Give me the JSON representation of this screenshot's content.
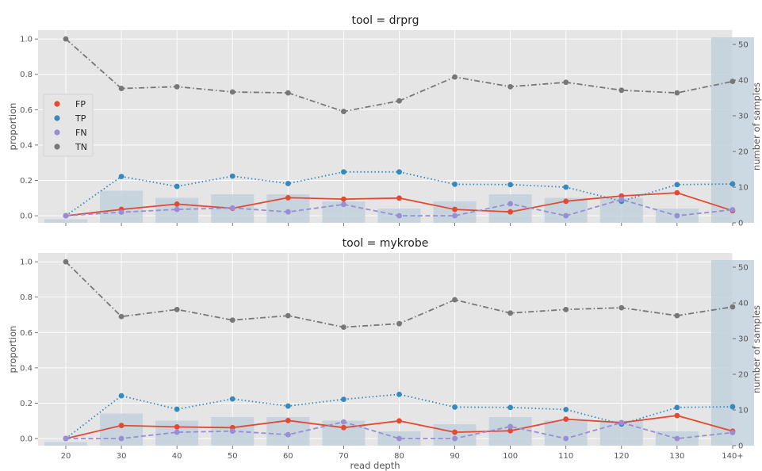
{
  "chart_data": {
    "type": "line",
    "x_label": "read depth",
    "categories": [
      "20",
      "30",
      "40",
      "50",
      "60",
      "70",
      "80",
      "90",
      "100",
      "110",
      "120",
      "130",
      "140+"
    ],
    "left_axis": {
      "label": "proportion",
      "ylim": [
        -0.04,
        1.05
      ],
      "ticks": [
        0.0,
        0.2,
        0.4,
        0.6,
        0.8,
        1.0
      ],
      "tick_labels": [
        "0.0",
        "0.2",
        "0.4",
        "0.6",
        "0.8",
        "1.0"
      ]
    },
    "right_axis": {
      "label": "number of samples",
      "ylim": [
        0,
        54
      ],
      "ticks": [
        0,
        10,
        20,
        30,
        40,
        50
      ],
      "tick_labels": [
        "0",
        "10",
        "20",
        "30",
        "40",
        "50"
      ]
    },
    "grid": true,
    "legend": {
      "placement": "center-left of top panel",
      "entries": [
        {
          "label": "FP",
          "color": "#e24a33"
        },
        {
          "label": "TP",
          "color": "#348abd"
        },
        {
          "label": "FN",
          "color": "#988ed5"
        },
        {
          "label": "TN",
          "color": "#777777"
        }
      ]
    },
    "series_styles": {
      "FP": {
        "color": "#e24a33",
        "dash": "solid"
      },
      "TP": {
        "color": "#348abd",
        "dash": "dotted"
      },
      "FN": {
        "color": "#988ed5",
        "dash": "dashed"
      },
      "TN": {
        "color": "#777777",
        "dash": "dashdot"
      }
    },
    "bar_color": "#bfd0dc",
    "panels": [
      {
        "title": "tool = drprg",
        "bars_samples": [
          1,
          9,
          7,
          8,
          8,
          6,
          4,
          6,
          8,
          7,
          7,
          4,
          52
        ],
        "series": [
          {
            "name": "FP",
            "values": [
              0.0,
              0.036,
              0.066,
              0.042,
              0.102,
              0.094,
              0.1,
              0.036,
              0.022,
              0.082,
              0.112,
              0.13,
              0.028
            ]
          },
          {
            "name": "TP",
            "values": [
              0.0,
              0.222,
              0.166,
              0.224,
              0.182,
              0.248,
              0.248,
              0.178,
              0.176,
              0.162,
              0.082,
              0.176,
              0.18
            ]
          },
          {
            "name": "FN",
            "values": [
              0.0,
              0.02,
              0.036,
              0.044,
              0.022,
              0.064,
              0.0,
              0.0,
              0.068,
              0.0,
              0.092,
              0.0,
              0.034
            ]
          },
          {
            "name": "TN",
            "values": [
              1.0,
              0.72,
              0.73,
              0.7,
              0.695,
              0.59,
              0.65,
              0.785,
              0.73,
              0.755,
              0.71,
              0.695,
              0.76
            ]
          }
        ]
      },
      {
        "title": "tool = mykrobe",
        "bars_samples": [
          1,
          9,
          7,
          8,
          8,
          7,
          4,
          6,
          8,
          7,
          7,
          4,
          52
        ],
        "series": [
          {
            "name": "FP",
            "values": [
              0.0,
              0.074,
              0.066,
              0.062,
              0.102,
              0.062,
              0.1,
              0.036,
              0.044,
              0.11,
              0.09,
              0.13,
              0.042
            ]
          },
          {
            "name": "TP",
            "values": [
              0.0,
              0.242,
              0.166,
              0.224,
              0.184,
              0.222,
              0.25,
              0.178,
              0.176,
              0.164,
              0.082,
              0.176,
              0.18
            ]
          },
          {
            "name": "FN",
            "values": [
              0.0,
              0.0,
              0.036,
              0.042,
              0.022,
              0.094,
              0.0,
              0.0,
              0.068,
              0.0,
              0.09,
              0.0,
              0.034
            ]
          },
          {
            "name": "TN",
            "values": [
              1.0,
              0.69,
              0.73,
              0.67,
              0.695,
              0.63,
              0.65,
              0.785,
              0.71,
              0.73,
              0.74,
              0.695,
              0.745
            ]
          }
        ]
      }
    ]
  }
}
